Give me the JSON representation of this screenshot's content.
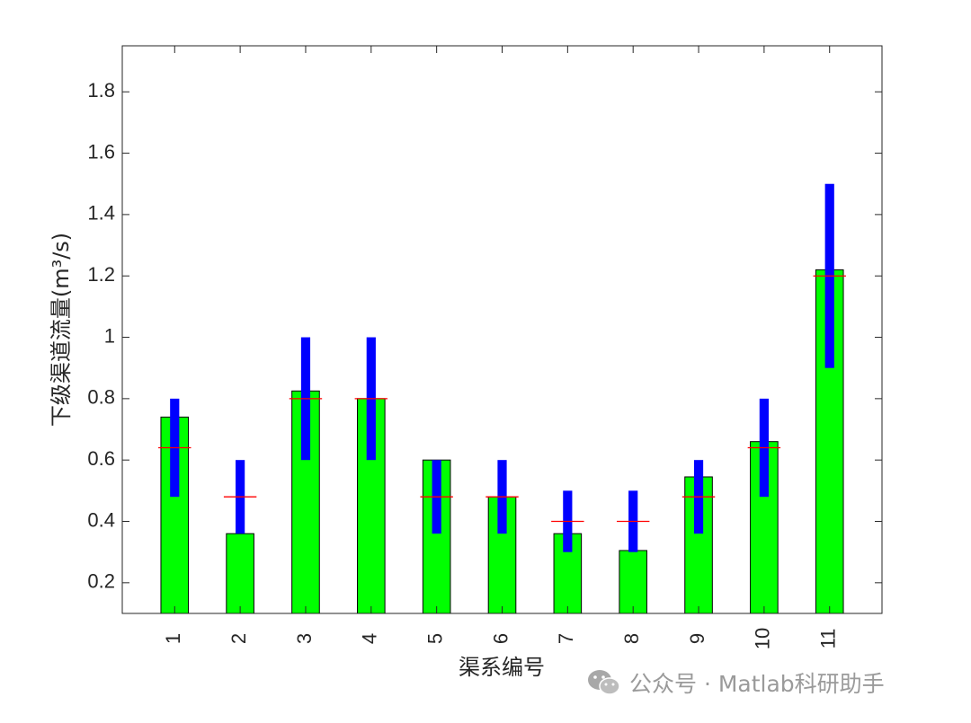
{
  "chart_data": {
    "type": "bar",
    "categories": [
      "1",
      "2",
      "3",
      "4",
      "5",
      "6",
      "7",
      "8",
      "9",
      "10",
      "11"
    ],
    "values": [
      0.74,
      0.36,
      0.825,
      0.8,
      0.6,
      0.48,
      0.36,
      0.305,
      0.545,
      0.66,
      1.22
    ],
    "range_low": [
      0.48,
      0.36,
      0.6,
      0.6,
      0.36,
      0.36,
      0.3,
      0.3,
      0.36,
      0.48,
      0.9
    ],
    "range_high": [
      0.8,
      0.6,
      1.0,
      1.0,
      0.6,
      0.6,
      0.5,
      0.5,
      0.6,
      0.8,
      1.5
    ],
    "reference": [
      0.64,
      0.48,
      0.8,
      0.8,
      0.48,
      0.48,
      0.4,
      0.4,
      0.48,
      0.64,
      1.2
    ],
    "xlabel": "渠系编号",
    "ylabel": "下级渠道流量(m³/s)",
    "ylim": [
      0.1,
      1.95
    ],
    "yticks": [
      0.2,
      0.4,
      0.6,
      0.8,
      1,
      1.2,
      1.4,
      1.6,
      1.8
    ],
    "grid": false,
    "colors": {
      "bar": "#00ff00",
      "range": "#0000ff",
      "reference": "#ff0000"
    }
  },
  "watermark": {
    "text": "公众号 · Matlab科研助手",
    "icon": "wechat-icon"
  }
}
